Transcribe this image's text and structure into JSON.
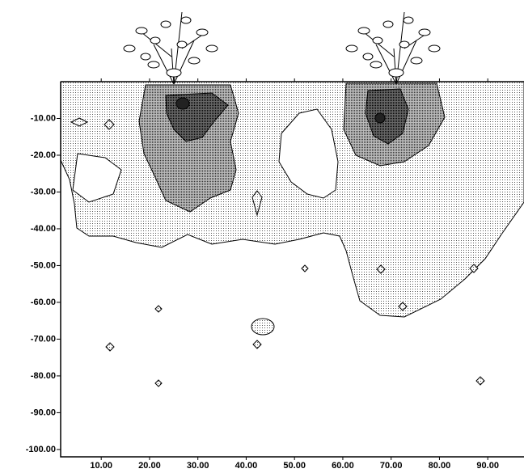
{
  "chart_data": {
    "type": "contour",
    "xlim": [
      1.6,
      97.5
    ],
    "ylim": [
      -102,
      0
    ],
    "xticks": [
      {
        "value": 10,
        "label": "10.00"
      },
      {
        "value": 20,
        "label": "20.00"
      },
      {
        "value": 30,
        "label": "30.00"
      },
      {
        "value": 40,
        "label": "40.00"
      },
      {
        "value": 50,
        "label": "50.00"
      },
      {
        "value": 60,
        "label": "60.00"
      },
      {
        "value": 70,
        "label": "70.00"
      },
      {
        "value": 80,
        "label": "80.00"
      },
      {
        "value": 90,
        "label": "90.00"
      }
    ],
    "yticks": [
      {
        "value": -10,
        "label": "-10.00"
      },
      {
        "value": -20,
        "label": "-20.00"
      },
      {
        "value": -30,
        "label": "-30.00"
      },
      {
        "value": -40,
        "label": "-40.00"
      },
      {
        "value": -50,
        "label": "-50.00"
      },
      {
        "value": -60,
        "label": "-60.00"
      },
      {
        "value": -70,
        "label": "-70.00"
      },
      {
        "value": -80,
        "label": "-80.00"
      },
      {
        "value": -90,
        "label": "-90.00"
      },
      {
        "value": -100,
        "label": "-100.00"
      }
    ],
    "grid": false
  }
}
